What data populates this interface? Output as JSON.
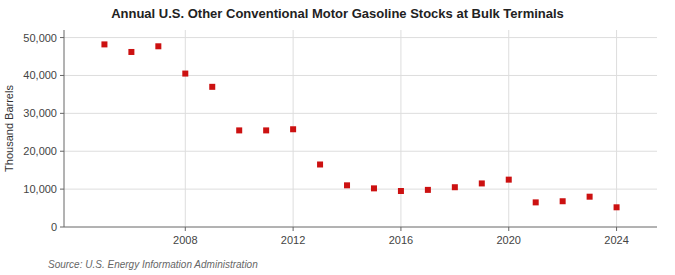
{
  "chart_data": {
    "type": "scatter",
    "title": "Annual U.S. Other Conventional Motor Gasoline Stocks at Bulk Terminals",
    "y_label": "Thousand Barrels",
    "annotations": [
      "Source: U.S. Energy Information Administration"
    ],
    "x": [
      2005,
      2006,
      2007,
      2008,
      2009,
      2010,
      2011,
      2012,
      2013,
      2014,
      2015,
      2016,
      2017,
      2018,
      2019,
      2020,
      2021,
      2022,
      2023,
      2024
    ],
    "values": [
      48200,
      46200,
      47700,
      40500,
      37000,
      25500,
      25500,
      25800,
      16500,
      11000,
      10200,
      9500,
      9800,
      10500,
      11500,
      12500,
      6500,
      6800,
      8000,
      5200
    ],
    "color": "#cc1111",
    "marker": "square",
    "grid": true,
    "xlim": [
      2003.5,
      2025.5
    ],
    "xticks": [
      2008,
      2012,
      2016,
      2020,
      2024
    ],
    "ylim": [
      0,
      52000
    ],
    "yticks": [
      0,
      {
        "value": 10000,
        "label": "10,000"
      },
      {
        "value": 20000,
        "label": "20,000"
      },
      {
        "value": 30000,
        "label": "30,000"
      },
      {
        "value": 40000,
        "label": "40,000"
      },
      {
        "value": 50000,
        "label": "50,000"
      }
    ]
  }
}
